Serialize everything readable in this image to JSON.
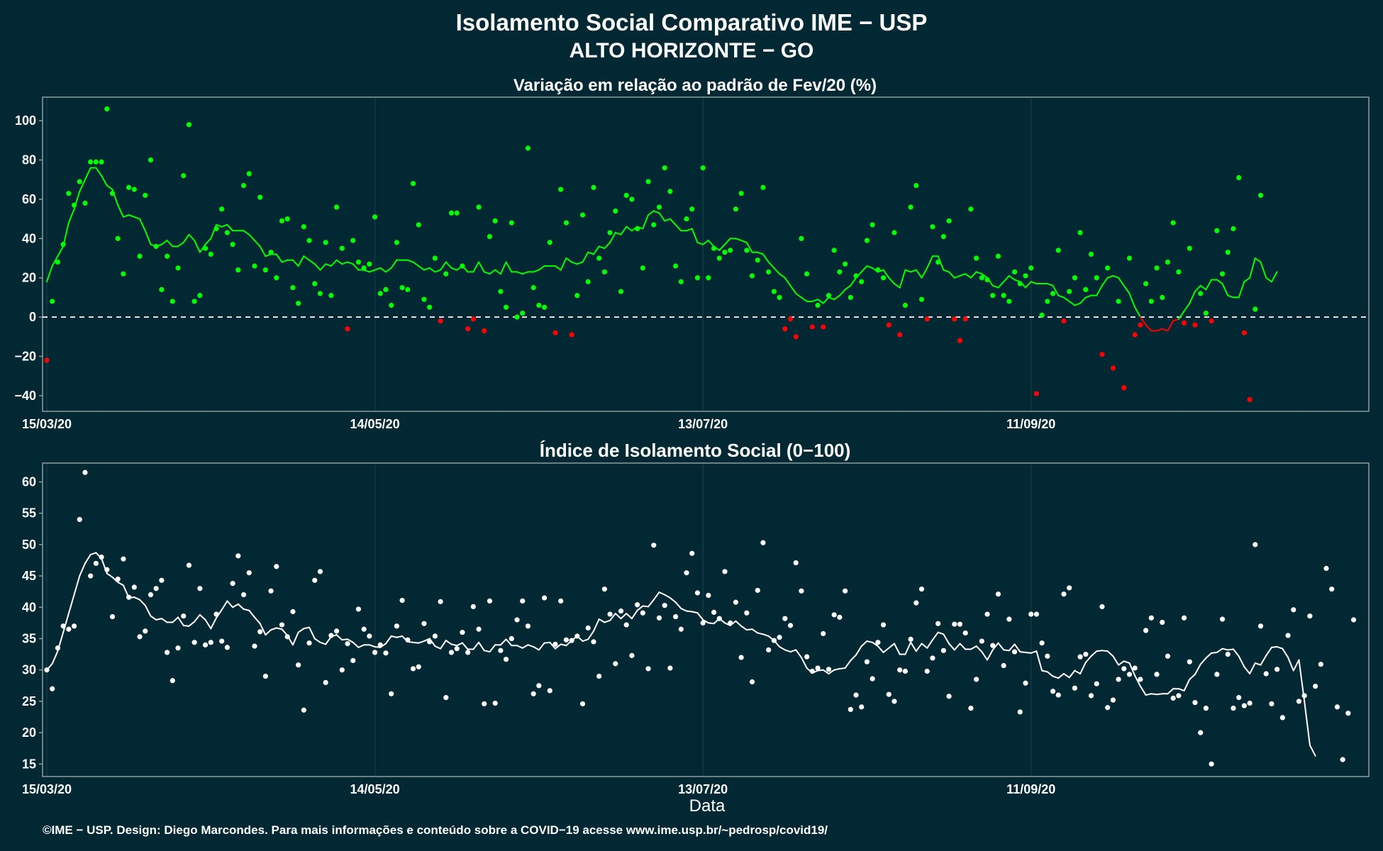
{
  "title_line1": "Isolamento Social Comparativo IME − USP",
  "title_line2": "ALTO HORIZONTE − GO",
  "footer": "©IME − USP. Design: Diego Marcondes. Para mais informações e conteúdo sobre a COVID−19 acesse www.ime.usp.br/~pedrosp/covid19/",
  "colors": {
    "background": "#022933",
    "positive": "#00ff00",
    "negative": "#ff0000",
    "index": "#ffffff",
    "frame": "#8a9da2",
    "grid": "#0f3a44"
  },
  "chart_data": [
    {
      "type": "scatter",
      "title": "Variação em relação ao padrão de Fev/20 (%)",
      "xlabel": "",
      "ylabel": "",
      "x_range": [
        "2020-03-15",
        "2020-11-11"
      ],
      "x_ticks": [
        "15/03/20",
        "14/05/20",
        "13/07/20",
        "11/09/20"
      ],
      "y_ticks": [
        -40,
        -20,
        0,
        20,
        40,
        60,
        80,
        100
      ],
      "ylim": [
        -48,
        112
      ],
      "reference_line": 0,
      "grid": true,
      "series": [
        {
          "kind": "points",
          "color_rule": "green if >= 0, red if < 0",
          "values": [
            -22,
            8,
            28,
            37,
            63,
            57,
            69,
            58,
            79,
            79,
            79,
            106,
            63,
            40,
            22,
            66,
            65,
            31,
            62,
            80,
            36,
            14,
            31,
            8,
            25,
            72,
            98,
            8,
            11,
            35,
            32,
            45,
            55,
            43,
            37,
            24,
            67,
            73,
            26,
            61,
            24,
            33,
            20,
            49,
            50,
            15,
            7,
            46,
            39,
            17,
            12,
            38,
            11,
            56,
            35,
            -6,
            39,
            28,
            25,
            27,
            51,
            12,
            14,
            6,
            38,
            15,
            14,
            68,
            47,
            9,
            5,
            30,
            -2,
            22,
            53,
            53,
            26,
            -6,
            -1,
            56,
            -7,
            41,
            49,
            13,
            5,
            48,
            0,
            2,
            86,
            15,
            6,
            5,
            38,
            -8,
            65,
            48,
            -9,
            11,
            52,
            18,
            66,
            30,
            23,
            43,
            54,
            13,
            62,
            60,
            45,
            25,
            69,
            47,
            56,
            76,
            64,
            26,
            18,
            50,
            55,
            20,
            76,
            20,
            35,
            30,
            33,
            34,
            55,
            63,
            34,
            21,
            29,
            66,
            23,
            13,
            10,
            -6,
            -1,
            -10,
            40,
            22,
            -5,
            6,
            -5,
            11,
            34,
            23,
            27,
            10,
            21,
            18,
            39,
            47,
            24,
            20,
            -4,
            43,
            -9,
            6,
            56,
            67,
            9,
            -1,
            46,
            28,
            41,
            49,
            -1,
            -12,
            -1,
            55,
            30,
            20,
            19,
            11,
            31,
            11,
            8,
            23,
            17,
            21,
            25,
            -39,
            1,
            8,
            12,
            34,
            -2,
            13,
            20,
            43,
            14,
            32,
            20,
            -19,
            25,
            -26,
            8,
            -36,
            30,
            -9,
            -4,
            17,
            8,
            25,
            10,
            28,
            48,
            23,
            -3,
            35,
            -4,
            12,
            2,
            -2,
            44,
            22,
            33,
            45,
            71,
            -8,
            -42,
            4,
            62
          ]
        },
        {
          "kind": "moving_average",
          "color_rule": "green if >= 0, red if < 0",
          "values": [
            18,
            26,
            31,
            36,
            48,
            55,
            64,
            70,
            76,
            76,
            72,
            67,
            65,
            57,
            51,
            52,
            51,
            50,
            44,
            37,
            36,
            37,
            39,
            36,
            36,
            38,
            42,
            39,
            33,
            37,
            40,
            47,
            46,
            47,
            44,
            44,
            44,
            42,
            39,
            36,
            31,
            32,
            32,
            28,
            29,
            29,
            26,
            31,
            29,
            27,
            24,
            27,
            26,
            29,
            27,
            28,
            27,
            24,
            24,
            23,
            24,
            25,
            23,
            25,
            29,
            29,
            29,
            28,
            26,
            24,
            25,
            23,
            24,
            28,
            25,
            24,
            26,
            23,
            23,
            28,
            23,
            22,
            24,
            22,
            28,
            23,
            23,
            22,
            23,
            23,
            24,
            26,
            26,
            26,
            24,
            30,
            28,
            27,
            28,
            33,
            32,
            36,
            35,
            38,
            43,
            42,
            46,
            44,
            46,
            45,
            52,
            54,
            53,
            49,
            50,
            47,
            44,
            44,
            45,
            38,
            37,
            39,
            36,
            34,
            37,
            40,
            40,
            39,
            38,
            33,
            33,
            32,
            28,
            25,
            22,
            20,
            16,
            12,
            10,
            8,
            8,
            9,
            7,
            10,
            9,
            11,
            14,
            16,
            20,
            23,
            26,
            25,
            23,
            24,
            20,
            17,
            15,
            24,
            23,
            24,
            20,
            25,
            31,
            31,
            24,
            23,
            20,
            21,
            22,
            20,
            23,
            22,
            20,
            16,
            15,
            18,
            21,
            19,
            18,
            15,
            18,
            17,
            17,
            17,
            16,
            11,
            10,
            8,
            6,
            7,
            10,
            11,
            11,
            16,
            20,
            21,
            20,
            16,
            12,
            5,
            0,
            -4,
            -7,
            -7,
            -6,
            -7,
            -2,
            -1,
            3,
            7,
            13,
            16,
            14,
            19,
            19,
            17,
            11,
            10,
            10,
            18,
            20,
            30,
            28,
            20,
            18,
            23
          ]
        }
      ]
    },
    {
      "type": "scatter",
      "title": "Índice de Isolamento Social (0−100)",
      "xlabel": "Data",
      "ylabel": "",
      "x_range": [
        "2020-03-15",
        "2020-11-11"
      ],
      "x_ticks": [
        "15/03/20",
        "14/05/20",
        "13/07/20",
        "11/09/20"
      ],
      "y_ticks": [
        15,
        20,
        25,
        30,
        35,
        40,
        45,
        50,
        55,
        60
      ],
      "ylim": [
        13,
        63
      ],
      "grid": true,
      "series": [
        {
          "kind": "points",
          "color": "#ffffff",
          "values": [
            30,
            27,
            33.5,
            37,
            36.5,
            37,
            54,
            61.5,
            45,
            47,
            48,
            46,
            38.5,
            44.5,
            47.7,
            41.6,
            43.2,
            35.3,
            36.2,
            42,
            43,
            44.3,
            32.8,
            28.3,
            33.5,
            38.6,
            46.7,
            34.4,
            43,
            34,
            34.4,
            38.9,
            34.6,
            33.6,
            43.8,
            48.2,
            42,
            45.5,
            33.8,
            36.1,
            29,
            42.6,
            46.5,
            37.2,
            35.3,
            39.3,
            30.8,
            23.6,
            34.3,
            44.3,
            45.7,
            28,
            35.5,
            36.2,
            30,
            34.2,
            31.5,
            39.7,
            36.5,
            35.4,
            32.8,
            34,
            32.7,
            26.2,
            37,
            41.1,
            34.8,
            30.2,
            30.5,
            37.4,
            34.5,
            35.4,
            40.9,
            25.6,
            32.8,
            33.4,
            36,
            32.8,
            40.1,
            36.5,
            24.6,
            41,
            24.7,
            33.1,
            31.7,
            35,
            38,
            41,
            37,
            26.2,
            27.5,
            41.5,
            26.7,
            34.1,
            41,
            34.8,
            34.7,
            35.4,
            24.6,
            36.7,
            34.5,
            29,
            42.9,
            38.9,
            31,
            39.4,
            37.2,
            32.3,
            40.4,
            39.1,
            30.2,
            49.9,
            38.3,
            40.3,
            30.3,
            38.5,
            36.5,
            45.5,
            48.6,
            42.3,
            37.5,
            41.9,
            39.2,
            38.2,
            45.7,
            37.5,
            40.8,
            32,
            39.1,
            28.1,
            42.7,
            50.3,
            33.2,
            34.7,
            35.2,
            38.2,
            37.1,
            47.1,
            42.6,
            32.1,
            29.8,
            30.3,
            35.8,
            30.1,
            38.8,
            38.4,
            42.6,
            23.7,
            26,
            24.1,
            31.3,
            28.6,
            34.4,
            37.2,
            26.1,
            25,
            30,
            29.8,
            34.9,
            40.7,
            42.9,
            29.8,
            31.9,
            37.4,
            33.1,
            25.8,
            37.3,
            37.3,
            35.9,
            23.9,
            28.5,
            34.6,
            38.9,
            33.9,
            42.1,
            30.7,
            38.1,
            32.9,
            23.3,
            27.9,
            38.9,
            38.9,
            34.3,
            32.2,
            26.6,
            26,
            42.1,
            43.1,
            27.1,
            32.1,
            32.5,
            25.9,
            27.8,
            40.1,
            24,
            25.2,
            28.5,
            30.2,
            29.3,
            30.3,
            28.5,
            36.3,
            38.3,
            29.3,
            37.6,
            32.2,
            25.5,
            25.9,
            38.3,
            31.3,
            24.8,
            20,
            23.9,
            15,
            29.3,
            38.1,
            32.5,
            23.9,
            25.6,
            24.3,
            24.7,
            50,
            37,
            29.4,
            24.6,
            30.1,
            22.4,
            35.5,
            39.6,
            25,
            25.9,
            38.6,
            27.4,
            30.9,
            46.2,
            42.9,
            24.1,
            15.7,
            23.1,
            38
          ]
        },
        {
          "kind": "moving_average",
          "color": "#ffffff",
          "values": [
            30,
            31,
            33,
            36,
            39,
            42,
            45,
            47,
            48.4,
            48.7,
            47.8,
            45.4,
            44.8,
            44,
            43.5,
            41.5,
            41.6,
            41.2,
            40.3,
            38.6,
            38,
            38.2,
            37.6,
            37.6,
            38.4,
            37.1,
            37,
            37.7,
            38.8,
            38,
            36.6,
            38.3,
            39.6,
            41,
            40,
            40.5,
            39.7,
            39.5,
            38.4,
            37.4,
            35.6,
            36.4,
            36.7,
            36.5,
            35.5,
            34,
            36,
            36.6,
            36.8,
            35,
            34.4,
            34.1,
            35.3,
            35.6,
            34.8,
            34.9,
            34.4,
            33.6,
            34,
            34,
            33.7,
            33.6,
            34.2,
            35.4,
            35.2,
            35.4,
            34.5,
            34.4,
            34.3,
            34.6,
            35,
            33.8,
            33.4,
            34.7,
            34.1,
            33.9,
            34.3,
            33.3,
            33.3,
            34.4,
            33.1,
            32.9,
            34,
            34,
            34.9,
            33.9,
            33.9,
            33.5,
            34,
            33.7,
            33.2,
            34.3,
            34.4,
            33.4,
            34.1,
            33.9,
            34.7,
            35.4,
            34.6,
            34.9,
            36.2,
            38.1,
            37.6,
            37.9,
            39,
            38.2,
            39,
            38.2,
            39.5,
            40.2,
            40.1,
            41.2,
            42.4,
            42,
            41.5,
            40.8,
            39.8,
            39.4,
            39.3,
            39.1,
            38,
            37.5,
            37.4,
            38.2,
            37.5,
            37.1,
            37.8,
            37,
            36.4,
            36.5,
            35.9,
            35.7,
            35.4,
            34.7,
            33.7,
            33.2,
            32.9,
            33.2,
            32,
            30.3,
            29.5,
            29.9,
            30,
            29.4,
            30,
            30.2,
            30.3,
            31.5,
            32.4,
            33.8,
            34.6,
            34.4,
            33.8,
            32.8,
            33.5,
            34.2,
            32.5,
            32.5,
            34.4,
            33,
            34.2,
            33.5,
            34.8,
            36,
            35.7,
            34.2,
            33.2,
            34.2,
            33.3,
            33.3,
            33.8,
            32.9,
            31.6,
            33.2,
            34.3,
            33.2,
            33.1,
            34.1,
            32.9,
            32.8,
            32.7,
            33,
            29.9,
            29.7,
            29,
            28.7,
            29.4,
            28.8,
            29.9,
            29.4,
            31.2,
            32.2,
            33,
            33.1,
            33,
            32.2,
            30.8,
            31.4,
            31.1,
            29.1,
            27.4,
            26,
            26.2,
            26.1,
            26.2,
            26.2,
            27,
            27,
            26.7,
            28.5,
            29.3,
            30.9,
            31.9,
            32.7,
            32.8,
            33.4,
            33.2,
            33.3,
            32.2,
            30.5,
            29.4,
            31.1,
            30.8,
            32.3,
            33.6,
            33.7,
            33.4,
            32,
            29.9,
            31.6,
            25,
            18,
            16.3
          ]
        }
      ]
    }
  ]
}
